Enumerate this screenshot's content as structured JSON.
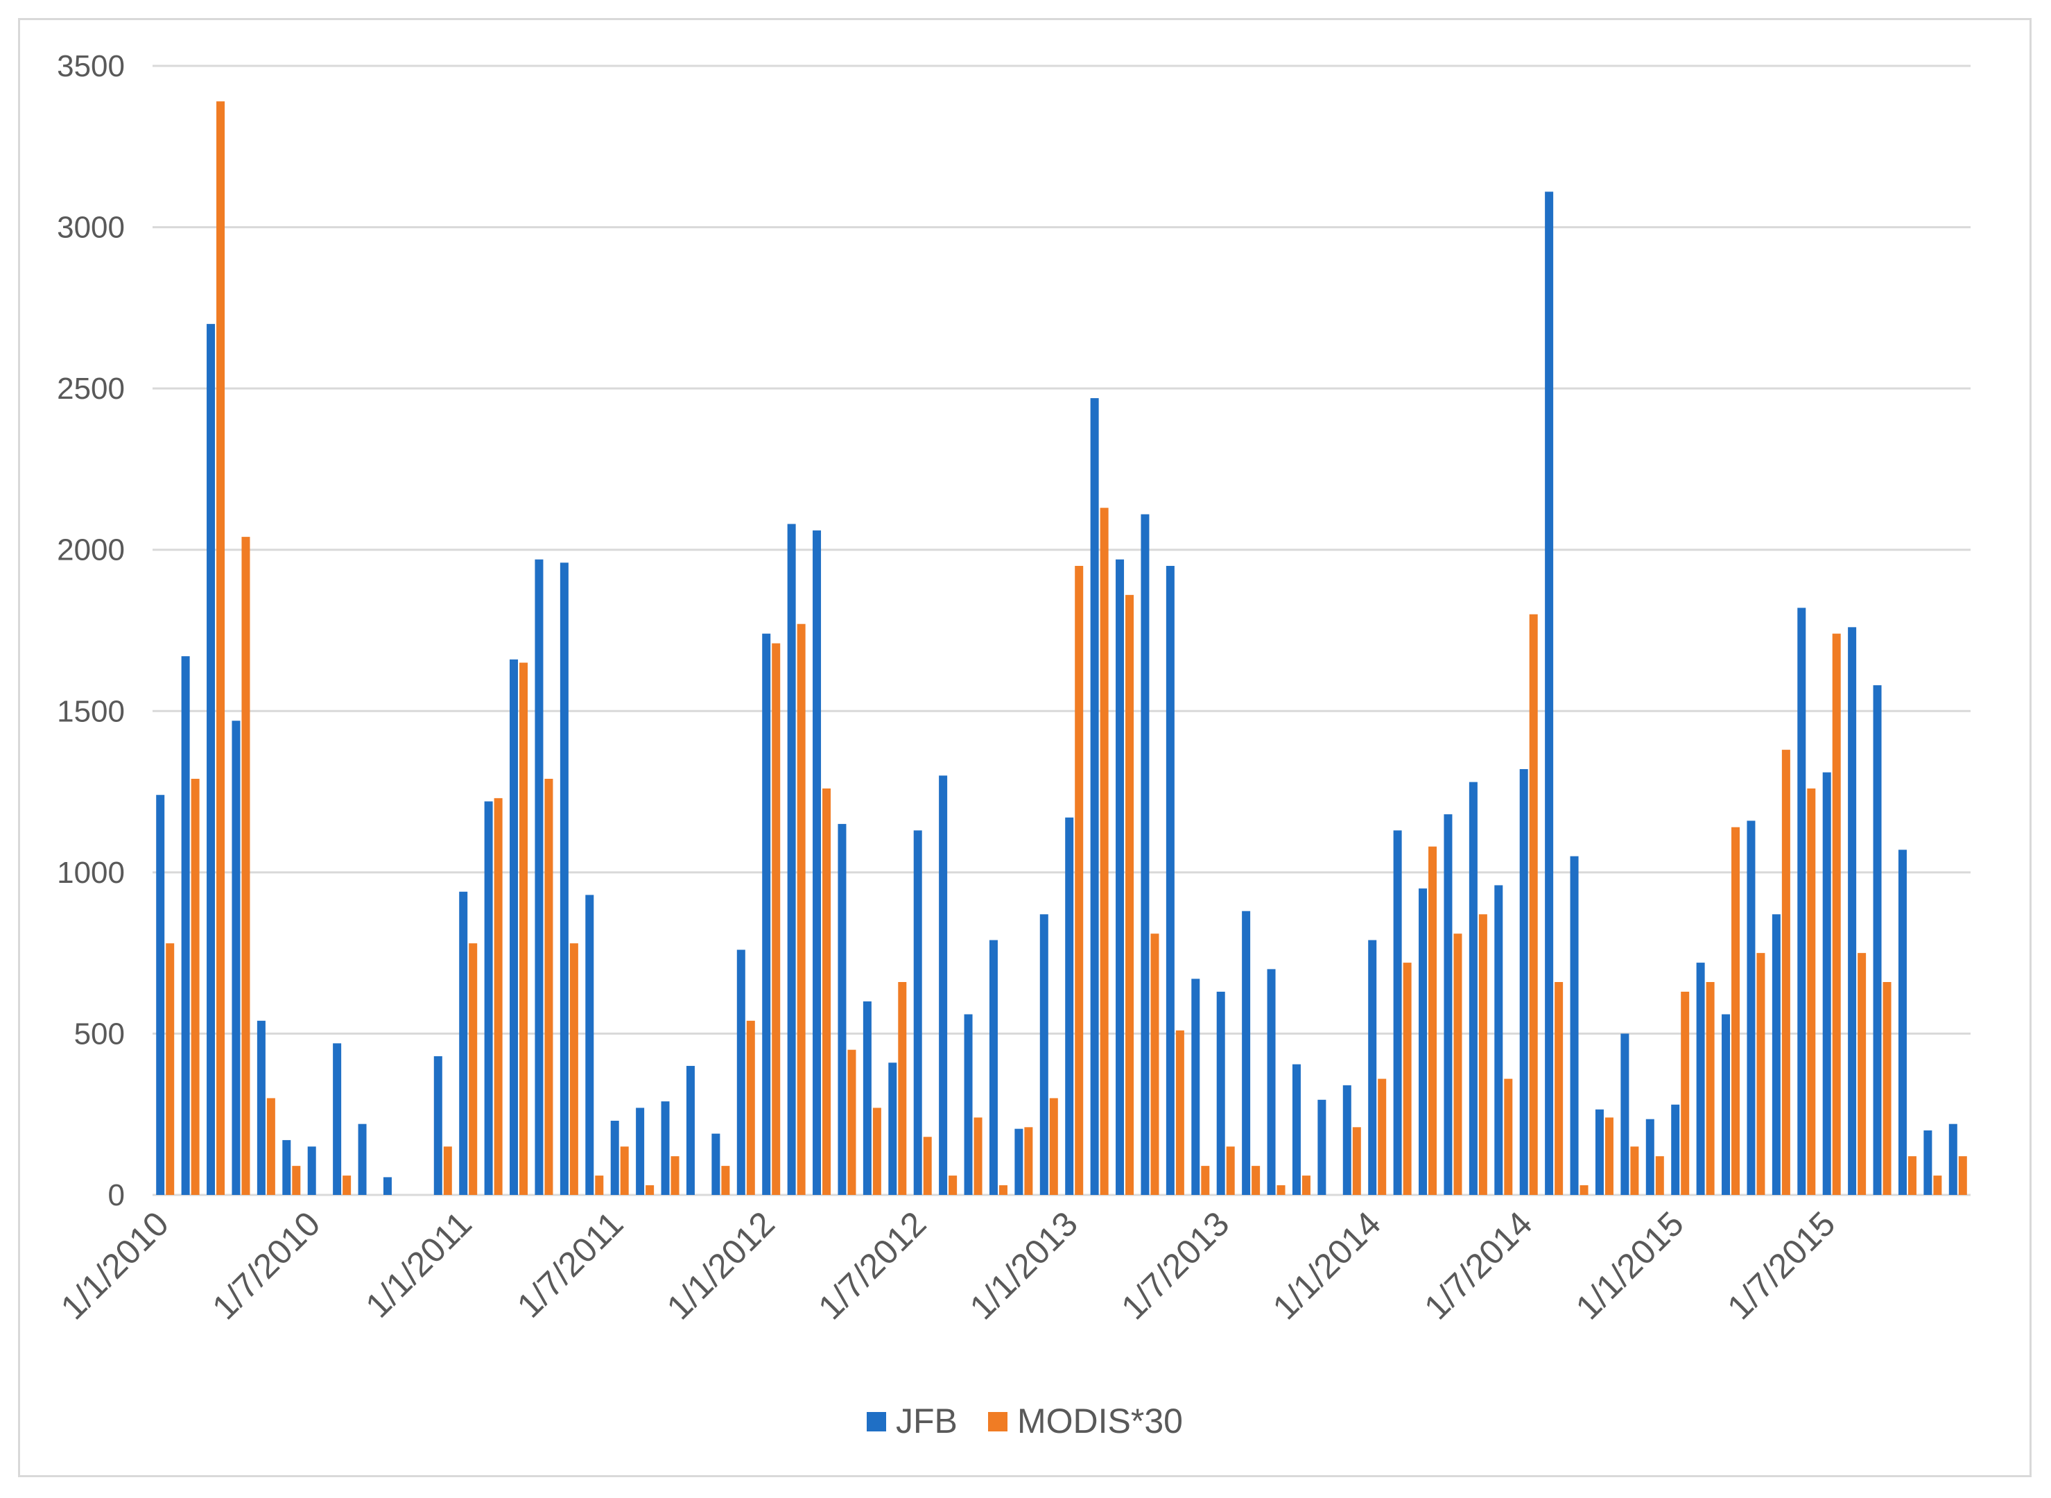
{
  "colors": {
    "jfb": "#1f6fc5",
    "modis": "#f07c24",
    "grid": "#d9d9d9",
    "text": "#595959"
  },
  "chart_data": {
    "type": "bar",
    "title": "",
    "xlabel": "",
    "ylabel": "",
    "ylim": [
      0,
      3500
    ],
    "yticks": [
      0,
      500,
      1000,
      1500,
      2000,
      2500,
      3000,
      3500
    ],
    "grid": true,
    "legend_position": "bottom-center",
    "x_tick_labels": [
      "1/1/2010",
      "1/7/2010",
      "1/1/2011",
      "1/7/2011",
      "1/1/2012",
      "1/7/2012",
      "1/1/2013",
      "1/7/2013",
      "1/1/2014",
      "1/7/2014",
      "1/1/2015",
      "1/7/2015"
    ],
    "categories": [
      "1/1/2010",
      "1/2/2010",
      "1/3/2010",
      "1/4/2010",
      "1/5/2010",
      "1/6/2010",
      "1/7/2010",
      "1/8/2010",
      "1/9/2010",
      "1/10/2010",
      "1/11/2010",
      "1/12/2010",
      "1/1/2011",
      "1/2/2011",
      "1/3/2011",
      "1/4/2011",
      "1/5/2011",
      "1/6/2011",
      "1/7/2011",
      "1/8/2011",
      "1/9/2011",
      "1/10/2011",
      "1/11/2011",
      "1/12/2011",
      "1/1/2012",
      "1/2/2012",
      "1/3/2012",
      "1/4/2012",
      "1/5/2012",
      "1/6/2012",
      "1/7/2012",
      "1/8/2012",
      "1/9/2012",
      "1/10/2012",
      "1/11/2012",
      "1/12/2012",
      "1/1/2013",
      "1/2/2013",
      "1/3/2013",
      "1/4/2013",
      "1/5/2013",
      "1/6/2013",
      "1/7/2013",
      "1/8/2013",
      "1/9/2013",
      "1/10/2013",
      "1/11/2013",
      "1/12/2013",
      "1/1/2014",
      "1/2/2014",
      "1/3/2014",
      "1/4/2014",
      "1/5/2014",
      "1/6/2014",
      "1/7/2014",
      "1/8/2014",
      "1/9/2014",
      "1/10/2014",
      "1/11/2014",
      "1/12/2014",
      "1/1/2015",
      "1/2/2015",
      "1/3/2015",
      "1/4/2015",
      "1/5/2015",
      "1/6/2015",
      "1/7/2015",
      "1/8/2015",
      "1/9/2015",
      "1/10/2015",
      "1/11/2015",
      "1/12/2015"
    ],
    "series": [
      {
        "name": "JFB",
        "color": "#1f6fc5",
        "values": [
          1240,
          1670,
          2700,
          1470,
          540,
          170,
          150,
          470,
          220,
          55,
          0,
          430,
          940,
          1220,
          1660,
          1970,
          1960,
          930,
          230,
          270,
          290,
          400,
          190,
          760,
          1740,
          2080,
          2060,
          1150,
          600,
          410,
          1130,
          1300,
          560,
          790,
          205,
          870,
          1170,
          2470,
          1970,
          2110,
          1950,
          670,
          630,
          880,
          700,
          405,
          295,
          340,
          790,
          1130,
          950,
          1180,
          1280,
          960,
          1320,
          3110,
          1050,
          265,
          500,
          235,
          280,
          720,
          560,
          1160,
          870,
          1820,
          1310,
          1760,
          1580,
          1070,
          200,
          220
        ]
      },
      {
        "name": "MODIS*30",
        "color": "#f07c24",
        "values": [
          780,
          1290,
          3390,
          2040,
          300,
          90,
          0,
          60,
          0,
          0,
          0,
          150,
          780,
          1230,
          1650,
          1290,
          780,
          60,
          150,
          30,
          120,
          0,
          90,
          540,
          1710,
          1770,
          1260,
          450,
          270,
          660,
          180,
          60,
          240,
          30,
          210,
          300,
          1950,
          2130,
          1860,
          810,
          510,
          90,
          150,
          90,
          30,
          60,
          0,
          210,
          360,
          720,
          1080,
          810,
          870,
          360,
          1800,
          660,
          30,
          240,
          150,
          120,
          630,
          660,
          1140,
          750,
          1380,
          1260,
          1740,
          750,
          660,
          120,
          60,
          120
        ]
      }
    ]
  }
}
